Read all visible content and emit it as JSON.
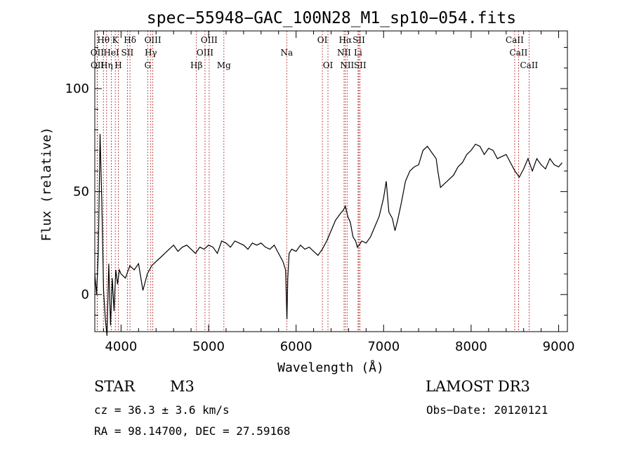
{
  "chart_data": {
    "type": "line",
    "title": "spec−55948−GAC_100N28_M1_sp10−054.fits",
    "xlabel": "Wavelength (Å)",
    "ylabel": "Flux (relative)",
    "xlim": [
      3700,
      9100
    ],
    "ylim": [
      -18,
      128
    ],
    "grid": false,
    "x_ticks": [
      4000,
      5000,
      6000,
      7000,
      8000,
      9000
    ],
    "y_ticks": [
      0,
      50,
      100
    ],
    "x_tick_labels": [
      "4000",
      "5000",
      "6000",
      "7000",
      "8000",
      "9000"
    ],
    "y_tick_labels": [
      "0",
      "50",
      "100"
    ],
    "series": [
      {
        "name": "flux",
        "x": [
          3700,
          3720,
          3740,
          3760,
          3780,
          3800,
          3820,
          3840,
          3860,
          3880,
          3900,
          3920,
          3940,
          3960,
          3980,
          4000,
          4050,
          4100,
          4150,
          4200,
          4250,
          4300,
          4350,
          4400,
          4450,
          4500,
          4550,
          4600,
          4650,
          4700,
          4750,
          4800,
          4850,
          4900,
          4950,
          5000,
          5050,
          5100,
          5150,
          5200,
          5250,
          5300,
          5350,
          5400,
          5450,
          5500,
          5550,
          5600,
          5650,
          5700,
          5750,
          5800,
          5850,
          5880,
          5895,
          5905,
          5920,
          5950,
          6000,
          6050,
          6100,
          6150,
          6200,
          6250,
          6300,
          6350,
          6400,
          6450,
          6500,
          6540,
          6563,
          6590,
          6620,
          6650,
          6680,
          6700,
          6720,
          6750,
          6800,
          6850,
          6900,
          6950,
          7000,
          7030,
          7060,
          7100,
          7130,
          7160,
          7200,
          7250,
          7300,
          7350,
          7400,
          7450,
          7500,
          7550,
          7600,
          7620,
          7650,
          7700,
          7750,
          7800,
          7850,
          7900,
          7950,
          8000,
          8050,
          8100,
          8150,
          8200,
          8250,
          8300,
          8350,
          8400,
          8450,
          8500,
          8550,
          8600,
          8650,
          8700,
          8750,
          8800,
          8850,
          8900,
          8950,
          9000,
          9040
        ],
        "values": [
          10,
          0,
          20,
          78,
          45,
          2,
          -12,
          -20,
          15,
          -15,
          8,
          -8,
          12,
          5,
          12,
          10,
          8,
          14,
          12,
          15,
          2,
          10,
          14,
          16,
          18,
          20,
          22,
          24,
          21,
          23,
          24,
          22,
          20,
          23,
          22,
          24,
          23,
          20,
          26,
          25,
          23,
          26,
          25,
          24,
          22,
          25,
          24,
          25,
          23,
          22,
          24,
          20,
          16,
          12,
          -12,
          8,
          20,
          22,
          21,
          24,
          22,
          23,
          21,
          19,
          22,
          26,
          31,
          36,
          39,
          41,
          43,
          38,
          35,
          28,
          26,
          23,
          24,
          26,
          25,
          28,
          33,
          38,
          47,
          55,
          40,
          37,
          31,
          36,
          44,
          55,
          60,
          62,
          63,
          70,
          72,
          69,
          66,
          60,
          52,
          54,
          56,
          58,
          62,
          64,
          68,
          70,
          73,
          72,
          68,
          71,
          70,
          66,
          67,
          68,
          64,
          60,
          57,
          61,
          66,
          60,
          66,
          63,
          61,
          66,
          63,
          62,
          64
        ]
      }
    ],
    "line_markers": [
      {
        "name": "Hθ",
        "wavelength": 3798,
        "row": 1
      },
      {
        "name": "OII",
        "wavelength": 3727,
        "row": 2
      },
      {
        "name": "OII",
        "wavelength": 3729,
        "row": 3
      },
      {
        "name": "HeI",
        "wavelength": 3889,
        "row": 2
      },
      {
        "name": "Hη",
        "wavelength": 3835,
        "row": 3
      },
      {
        "name": "K",
        "wavelength": 3934,
        "row": 1
      },
      {
        "name": "SII",
        "wavelength": 4072,
        "row": 2
      },
      {
        "name": "H",
        "wavelength": 3969,
        "row": 3
      },
      {
        "name": "Hδ",
        "wavelength": 4102,
        "row": 1
      },
      {
        "name": "OIII",
        "wavelength": 4363,
        "row": 1
      },
      {
        "name": "Hγ",
        "wavelength": 4340,
        "row": 2
      },
      {
        "name": "G",
        "wavelength": 4305,
        "row": 3
      },
      {
        "name": "OIII",
        "wavelength": 5007,
        "row": 1
      },
      {
        "name": "OIII",
        "wavelength": 4959,
        "row": 2
      },
      {
        "name": "Hβ",
        "wavelength": 4861,
        "row": 3
      },
      {
        "name": "Mg",
        "wavelength": 5175,
        "row": 3
      },
      {
        "name": "Na",
        "wavelength": 5893,
        "row": 2
      },
      {
        "name": "OI",
        "wavelength": 6300,
        "row": 1
      },
      {
        "name": "OI",
        "wavelength": 6364,
        "row": 3
      },
      {
        "name": "Hα",
        "wavelength": 6563,
        "row": 1
      },
      {
        "name": "NII",
        "wavelength": 6548,
        "row": 2
      },
      {
        "name": "NII",
        "wavelength": 6583,
        "row": 3
      },
      {
        "name": "SII",
        "wavelength": 6717,
        "row": 1
      },
      {
        "name": "Li",
        "wavelength": 6708,
        "row": 2
      },
      {
        "name": "SII",
        "wavelength": 6731,
        "row": 3
      },
      {
        "name": "CaII",
        "wavelength": 8498,
        "row": 1
      },
      {
        "name": "CaII",
        "wavelength": 8542,
        "row": 2
      },
      {
        "name": "CaII",
        "wavelength": 8662,
        "row": 3
      }
    ]
  },
  "info": {
    "object_class": "STAR",
    "subclass": "M3",
    "survey": "LAMOST DR3",
    "cz_text": "cz = 36.3 ± 3.6 km/s",
    "obs_date_text": "Obs−Date: 20120121",
    "coords_text": "RA =  98.14700, DEC =  27.59168"
  },
  "colors": {
    "axis": "#000000",
    "spectrum": "#000000",
    "marker_line": "#b22222"
  }
}
